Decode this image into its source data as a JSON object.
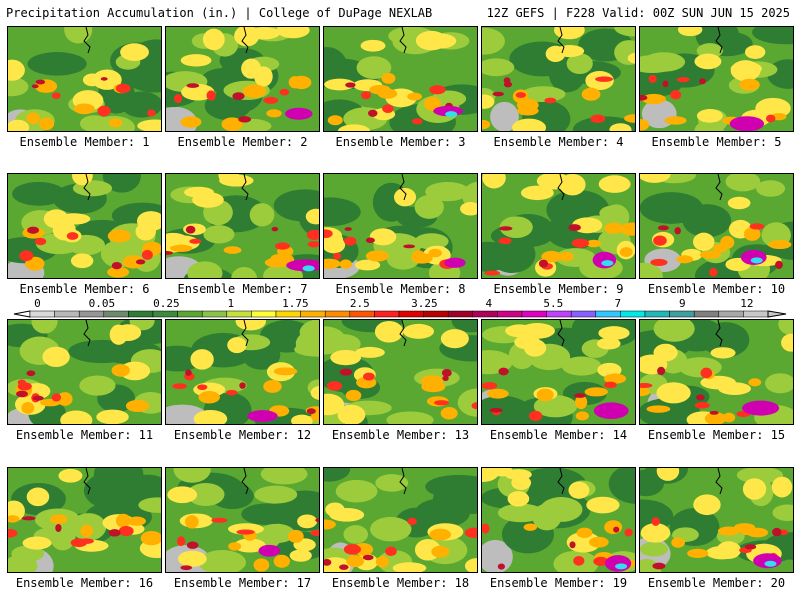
{
  "header": {
    "title": "Precipitation Accumulation (in.) | College of DuPage NEXLAB",
    "run_info": "12Z GEFS | F228 Valid: 00Z SUN JUN 15 2025"
  },
  "panel_label_prefix": "Ensemble Member: ",
  "panels": [
    {
      "member": "1"
    },
    {
      "member": "2"
    },
    {
      "member": "3"
    },
    {
      "member": "4"
    },
    {
      "member": "5"
    },
    {
      "member": "6"
    },
    {
      "member": "7"
    },
    {
      "member": "8"
    },
    {
      "member": "9"
    },
    {
      "member": "10"
    },
    {
      "member": "11"
    },
    {
      "member": "12"
    },
    {
      "member": "13"
    },
    {
      "member": "14"
    },
    {
      "member": "15"
    },
    {
      "member": "16"
    },
    {
      "member": "17"
    },
    {
      "member": "18"
    },
    {
      "member": "19"
    },
    {
      "member": "20"
    }
  ],
  "colorbar": {
    "tick_labels": [
      "0",
      "0.05",
      "0.25",
      "1",
      "1.75",
      "2.5",
      "3.25",
      "4",
      "5.5",
      "7",
      "9",
      "12"
    ],
    "colors": [
      "#d9d9d9",
      "#b8b8b8",
      "#969696",
      "#6e8a6e",
      "#2e7d32",
      "#3d8b3d",
      "#59a832",
      "#8bc34a",
      "#c6e03c",
      "#ffff33",
      "#ffd700",
      "#ffb000",
      "#ff8c00",
      "#ff5500",
      "#ff2020",
      "#e00000",
      "#b80000",
      "#a00028",
      "#b00058",
      "#d0008a",
      "#e000c0",
      "#c040ff",
      "#8860ff",
      "#30c8ff",
      "#00e8e8",
      "#20b8b8",
      "#40a0a0",
      "#808080",
      "#a8a8a8",
      "#c8c8c8"
    ]
  },
  "map_colors": {
    "gray": "#bdbdbd",
    "green_dark": "#2e7d32",
    "green": "#5aa832",
    "green_light": "#9ccc3c",
    "yellow": "#ffe74a",
    "orange": "#ffb000",
    "red": "#ff3020",
    "dark_red": "#c0102a",
    "magenta": "#d000b0",
    "cyan": "#30e0f0"
  }
}
